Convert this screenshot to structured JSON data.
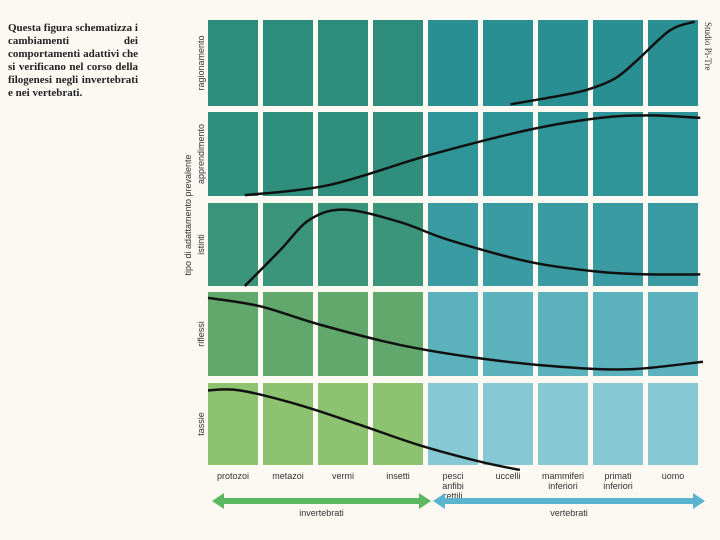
{
  "caption": "Questa figura schematizza i cambiamenti dei comportamenti adattivi che si verificano nel corso della filogenesi negli invertebrati e nei vertebrati.",
  "credit": "Studio Pi-Tre",
  "chart_data": {
    "type": "line",
    "ylabel": "tipo di adattamento prevalente",
    "rows": [
      "ragionamento",
      "apprendimento",
      "istinti",
      "riflessi",
      "tassie"
    ],
    "categories": [
      "protozoi",
      "metazoi",
      "vermi",
      "insetti",
      "pesci anfibi rettili",
      "uccelli",
      "mammiferi inferiori",
      "primati inferiori",
      "uomo"
    ],
    "groups": [
      {
        "label": "invertebrati",
        "from": 0,
        "to": 3,
        "color": "#5cb860"
      },
      {
        "label": "vertebrati",
        "from": 4,
        "to": 8,
        "color": "#5ab4d0"
      }
    ],
    "series_note": "x in stage units (0 = left edge of protozoi, 9 = right edge of uomo); level 0-1 within row band",
    "series": [
      {
        "name": "ragionamento",
        "points": [
          [
            5.5,
            0.02
          ],
          [
            6.4,
            0.12
          ],
          [
            6.9,
            0.19
          ],
          [
            7.4,
            0.32
          ],
          [
            7.8,
            0.53
          ],
          [
            8.4,
            0.88
          ],
          [
            8.85,
            0.98
          ]
        ]
      },
      {
        "name": "apprendimento",
        "points": [
          [
            0.67,
            0.01
          ],
          [
            2.2,
            0.13
          ],
          [
            4.04,
            0.49
          ],
          [
            5.85,
            0.79
          ],
          [
            7.13,
            0.93
          ],
          [
            8.04,
            0.96
          ],
          [
            8.95,
            0.93
          ]
        ]
      },
      {
        "name": "istinti",
        "points": [
          [
            0.67,
            0
          ],
          [
            1.31,
            0.43
          ],
          [
            1.85,
            0.8
          ],
          [
            2.49,
            0.92
          ],
          [
            3.49,
            0.77
          ],
          [
            4.4,
            0.55
          ],
          [
            5.85,
            0.29
          ],
          [
            7.13,
            0.17
          ],
          [
            8.04,
            0.14
          ],
          [
            8.95,
            0.14
          ]
        ]
      },
      {
        "name": "riflessi",
        "points": [
          [
            0,
            0.93
          ],
          [
            0.95,
            0.83
          ],
          [
            2.04,
            0.61
          ],
          [
            3.49,
            0.37
          ],
          [
            4.95,
            0.21
          ],
          [
            6.4,
            0.11
          ],
          [
            7.67,
            0.08
          ],
          [
            9,
            0.17
          ]
        ]
      },
      {
        "name": "tassie",
        "points": [
          [
            0,
            0.91
          ],
          [
            0.58,
            0.91
          ],
          [
            1.67,
            0.73
          ],
          [
            2.76,
            0.49
          ],
          [
            3.85,
            0.24
          ],
          [
            4.95,
            0.04
          ],
          [
            5.67,
            -0.06
          ]
        ]
      }
    ],
    "cell_colors": {
      "invertebrati": [
        "#2e8c7c",
        "#2f8f7c",
        "#3a957a",
        "#62a86c",
        "#8cc270"
      ],
      "vertebrati": [
        "#2a8f92",
        "#2f9598",
        "#3a9ca2",
        "#5cb2bc",
        "#86c8d4"
      ]
    }
  }
}
